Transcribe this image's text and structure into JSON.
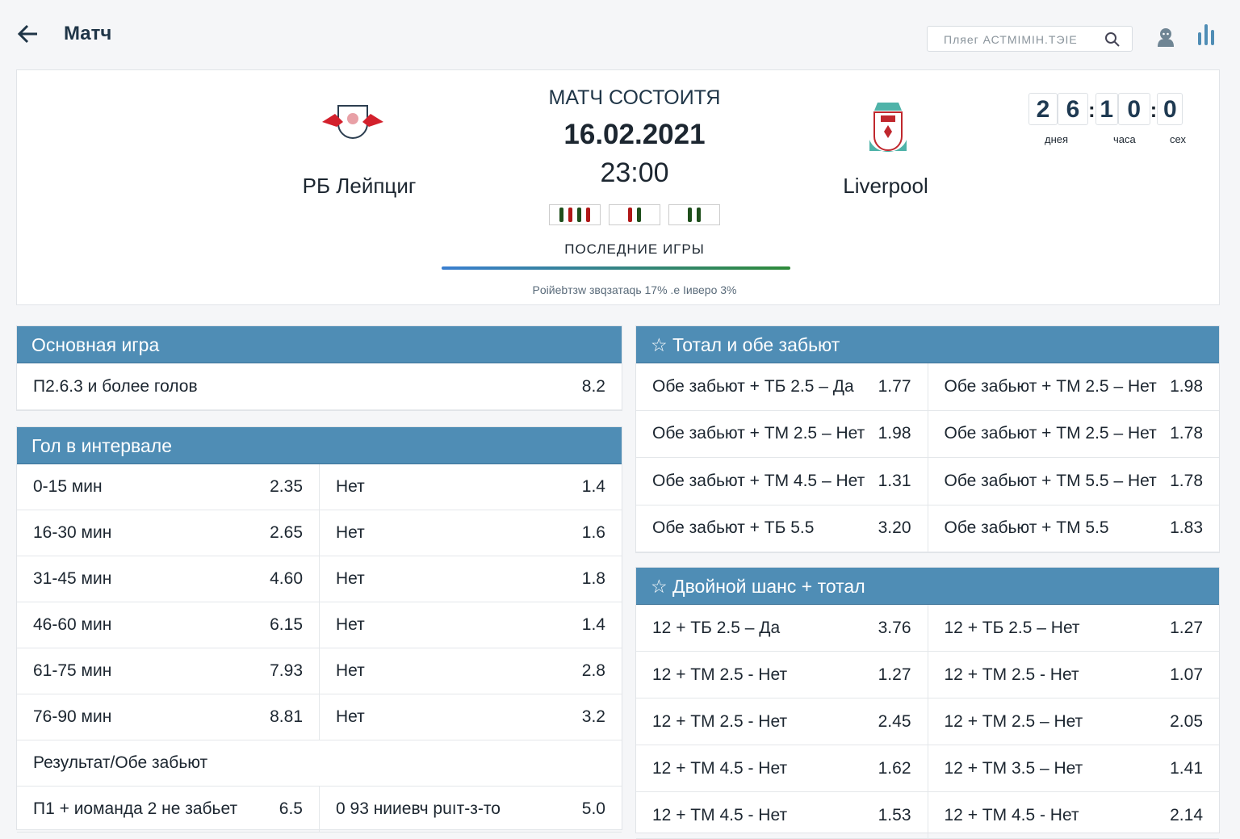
{
  "header": {
    "title": "Матч",
    "search_placeholder": "Пляег АСТМIМIН.ТЭIЕ"
  },
  "match": {
    "status": "МАТЧ СОСТОИТЯ",
    "date": "16.02.2021",
    "time": "23:00",
    "home": "РБ Лейпциг",
    "away": "Liverpool",
    "last_games_label": "ПОСЛЕДНИЕ ИГРЫ",
    "stats_text": "Poiйebтзw   звqзатаqь 17%  .e Iиверо 3%",
    "form": [
      [
        "green",
        "red",
        "green",
        "red"
      ],
      [
        "red",
        "green"
      ],
      [
        "green",
        "green"
      ]
    ],
    "colors": {
      "green": "#1f4f1c",
      "red": "#b01818"
    },
    "countdown": {
      "digits": [
        "2",
        "6",
        "1",
        "0",
        "0"
      ],
      "labels": [
        "днея",
        "часа",
        "сех"
      ]
    }
  },
  "main_game": {
    "title": "Основная игра",
    "rows": [
      {
        "label": "П2.6.3 и более голов",
        "odd": "8.2"
      }
    ]
  },
  "interval": {
    "title": "Гол в интервале",
    "rows": [
      {
        "label": "0-15 мин",
        "odd": "2.35",
        "label2": "Нет",
        "odd2": "1.4"
      },
      {
        "label": "16-30 мин",
        "odd": "2.65",
        "label2": "Нет",
        "odd2": "1.6"
      },
      {
        "label": "31-45 мин",
        "odd": "4.60",
        "label2": "Нет",
        "odd2": "1.8"
      },
      {
        "label": "46-60 мин",
        "odd": "6.15",
        "label2": "Нет",
        "odd2": "1.4"
      },
      {
        "label": "61-75 мин",
        "odd": "7.93",
        "label2": "Нет",
        "odd2": "2.8"
      },
      {
        "label": "76-90 мин",
        "odd": "8.81",
        "label2": "Нет",
        "odd2": "3.2"
      }
    ],
    "sub_title": "Результат/Обе забьют",
    "sub_rows": [
      {
        "label": "П1 + иоманда 2 не забьет",
        "odd": "6.5",
        "label2": "0 93 нииевч рuıт-з-то",
        "odd2": "5.0"
      }
    ]
  },
  "total_both": {
    "title": "Тотал и обе забьют",
    "rows": [
      {
        "label": "Обе забьют + ТБ 2.5 – Да",
        "odd": "1.77",
        "label2": "Обе забьют + ТМ 2.5 – Нет",
        "odd2": "1.98"
      },
      {
        "label": "Обе забьют + ТМ 2.5 – Нет",
        "odd": "1.98",
        "label2": "Обе забьют + ТМ 2.5 – Нет",
        "odd2": "1.78"
      },
      {
        "label": "Обе забьют + ТМ 4.5 – Нет",
        "odd": "1.31",
        "label2": "Обе забьют + ТМ 5.5 – Нет",
        "odd2": "1.78"
      },
      {
        "label": "Обе забьют + ТБ 5.5",
        "odd": "3.20",
        "label2": "Обе забьют + ТМ 5.5",
        "odd2": "1.83"
      }
    ]
  },
  "double_chance": {
    "title": "Двойной шанс + тотал",
    "rows": [
      {
        "label": "12 + ТБ 2.5 – Да",
        "odd": "3.76",
        "label2": "12 + ТБ 2.5 – Нет",
        "odd2": "1.27"
      },
      {
        "label": "12 + ТМ 2.5 - Нет",
        "odd": "1.27",
        "label2": "12 + ТМ 2.5 - Нет",
        "odd2": "1.07"
      },
      {
        "label": "12 + ТМ 2.5 - Нет",
        "odd": "2.45",
        "label2": "12 + ТМ 2.5 – Нет",
        "odd2": "2.05"
      },
      {
        "label": "12 + ТМ 4.5 - Нет",
        "odd": "1.62",
        "label2": "12 + ТМ 3.5 – Нет",
        "odd2": "1.41"
      },
      {
        "label": "12 + ТМ 4.5 - Нет",
        "odd": "1.53",
        "label2": "12 + ТМ 4.5 - Нет",
        "odd2": "2.14"
      }
    ]
  }
}
